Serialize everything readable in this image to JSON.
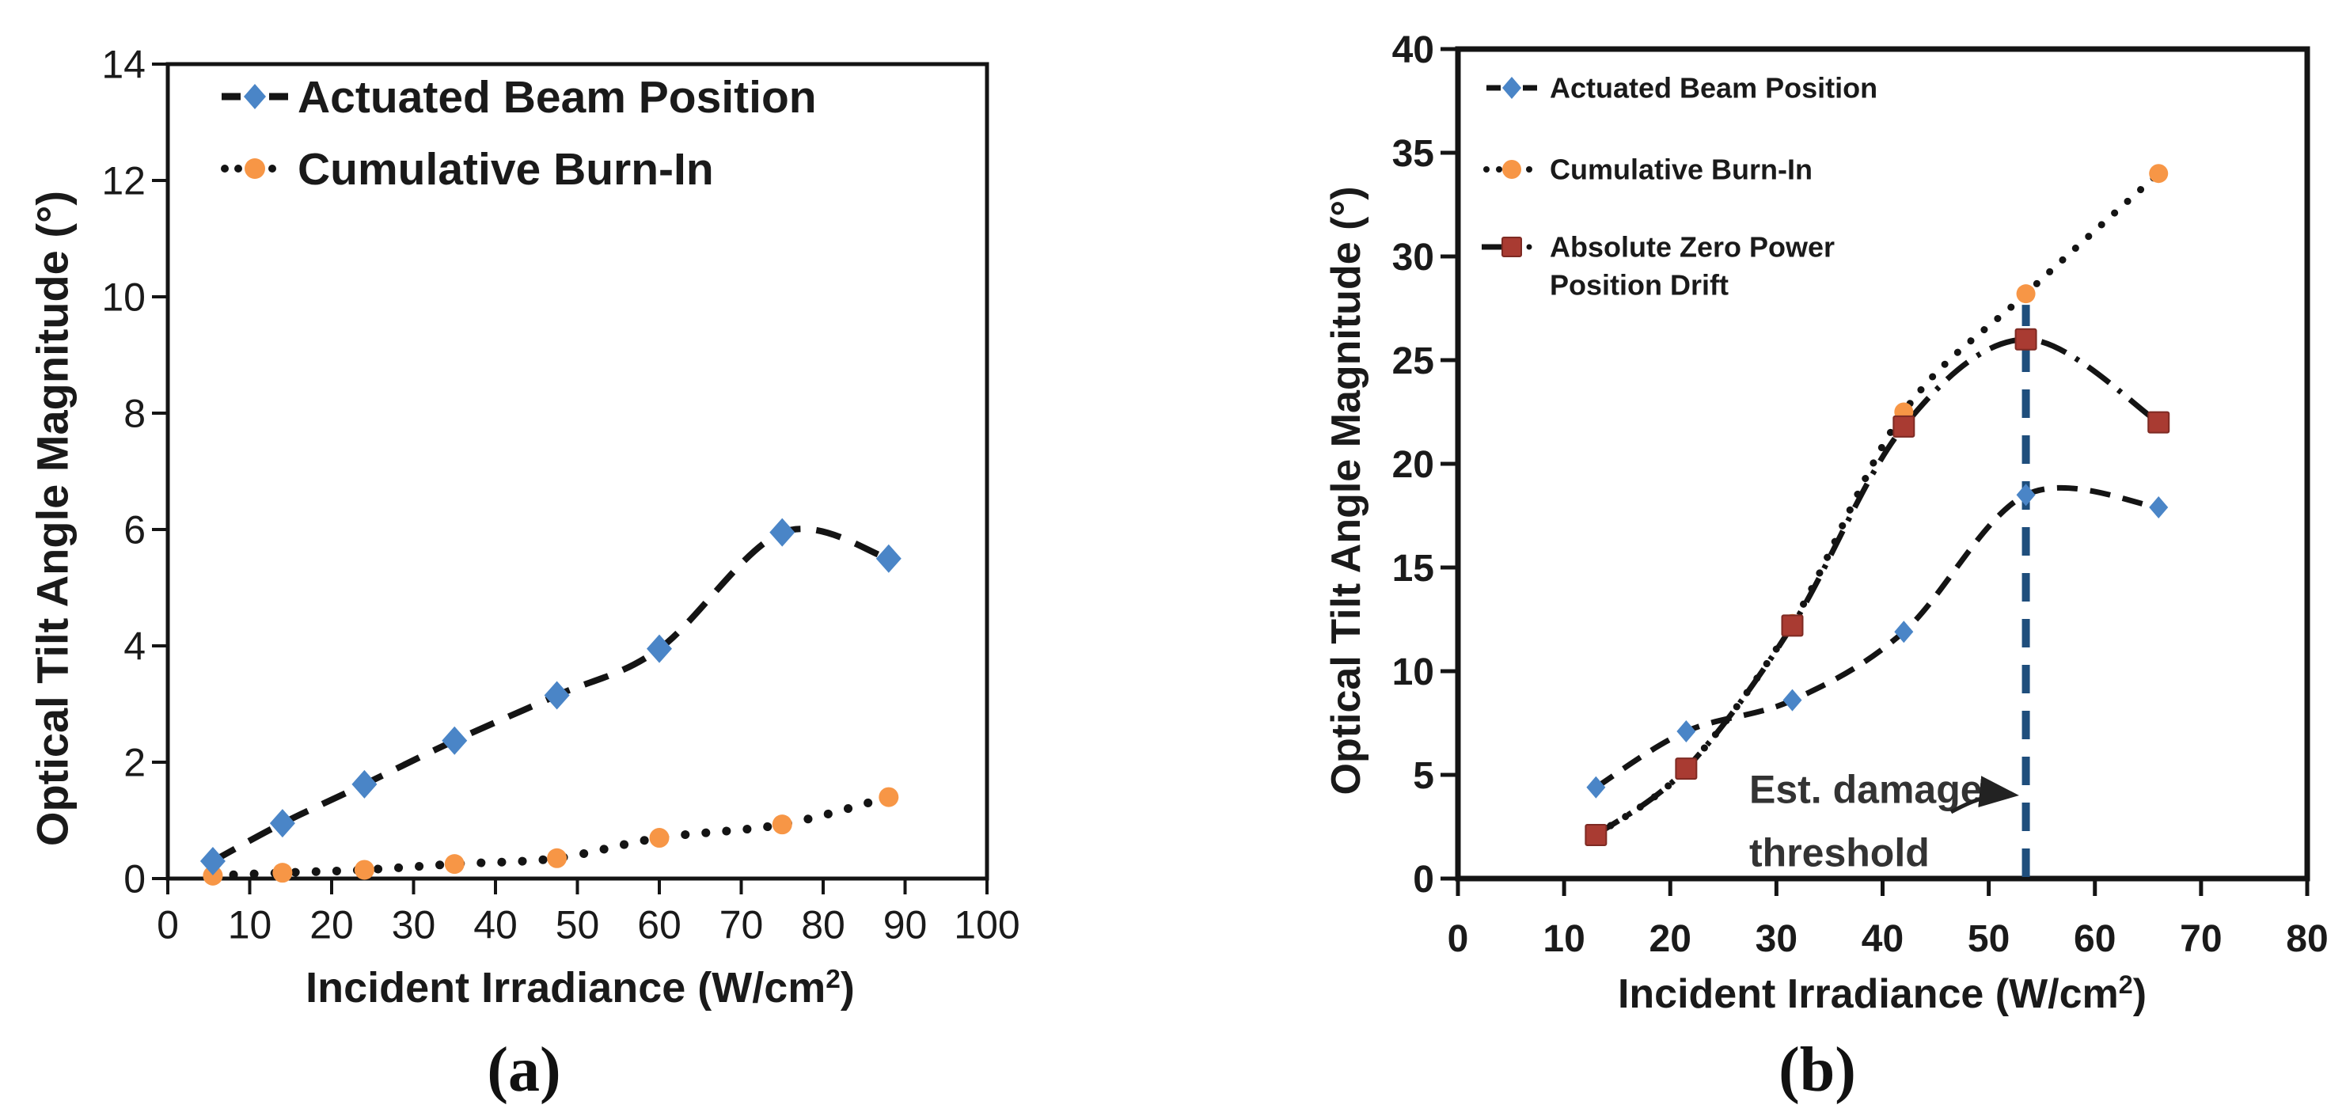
{
  "page": {
    "background": "#ffffff",
    "ink": "#141414",
    "text_color": "#1a1a1a",
    "annotation_color": "#333333"
  },
  "chart_data": [
    {
      "id": "a",
      "type": "line",
      "caption": "(a)",
      "xlabel": "Incident Irradiance (W/cm",
      "xlabel_sup": "2",
      "xlabel_end": ")",
      "ylabel": "Optical Tilt Angle Magnitude (°)",
      "xlim": [
        0,
        100
      ],
      "ylim": [
        0,
        14
      ],
      "xticks": [
        0,
        10,
        20,
        30,
        40,
        50,
        60,
        70,
        80,
        90,
        100
      ],
      "yticks": [
        0,
        2,
        4,
        6,
        8,
        10,
        12,
        14
      ],
      "grid": false,
      "legend_position": "top-left",
      "x": [
        5.5,
        14,
        24,
        35,
        47.5,
        60,
        75,
        88
      ],
      "series": [
        {
          "name": "Actuated Beam Position",
          "marker": "diamond",
          "marker_color": "#4a85c7",
          "line_style": "dashed",
          "line_color": "#141414",
          "values": [
            0.3,
            0.95,
            1.62,
            2.37,
            3.15,
            3.95,
            5.95,
            5.5
          ]
        },
        {
          "name": "Cumulative Burn-In",
          "marker": "circle",
          "marker_color": "#f79646",
          "line_style": "dotted",
          "line_color": "#141414",
          "values": [
            0.05,
            0.1,
            0.15,
            0.25,
            0.35,
            0.7,
            0.93,
            1.4
          ]
        }
      ]
    },
    {
      "id": "b",
      "type": "line",
      "caption": "(b)",
      "xlabel": "Incident Irradiance (W/cm",
      "xlabel_sup": "2",
      "xlabel_end": ")",
      "ylabel": "Optical Tilt Angle Magnitude (°)",
      "xlim": [
        0,
        80
      ],
      "ylim": [
        0,
        40
      ],
      "xticks": [
        0,
        10,
        20,
        30,
        40,
        50,
        60,
        70,
        80
      ],
      "yticks": [
        0,
        5,
        10,
        15,
        20,
        25,
        30,
        35,
        40
      ],
      "grid": false,
      "legend_position": "top-left",
      "x": [
        13,
        21.5,
        31.5,
        42,
        53.5,
        66
      ],
      "series": [
        {
          "name": "Actuated Beam Position",
          "marker": "diamond",
          "marker_color": "#4a85c7",
          "line_style": "dashed",
          "line_color": "#141414",
          "values": [
            4.4,
            7.1,
            8.6,
            11.9,
            18.5,
            17.9
          ]
        },
        {
          "name": "Cumulative Burn-In",
          "marker": "circle",
          "marker_color": "#f79646",
          "line_style": "dotted",
          "line_color": "#141414",
          "values": [
            2.1,
            5.3,
            12.3,
            22.5,
            28.2,
            34
          ]
        },
        {
          "name": "Absolute Zero Power Position Drift",
          "legend_lines": [
            "Absolute Zero Power",
            "Position Drift"
          ],
          "marker": "square",
          "marker_color": "#a93b32",
          "line_style": "dashdot",
          "line_color": "#141414",
          "values": [
            2.1,
            5.3,
            12.2,
            21.8,
            26,
            22
          ]
        }
      ],
      "threshold_line": {
        "x": 53.5,
        "y_top": 28.2,
        "color": "#1f4e7c",
        "style": "dashed"
      },
      "annotation": {
        "lines": [
          "Est. damage",
          "threshold"
        ],
        "points_to": "threshold-line"
      }
    }
  ]
}
